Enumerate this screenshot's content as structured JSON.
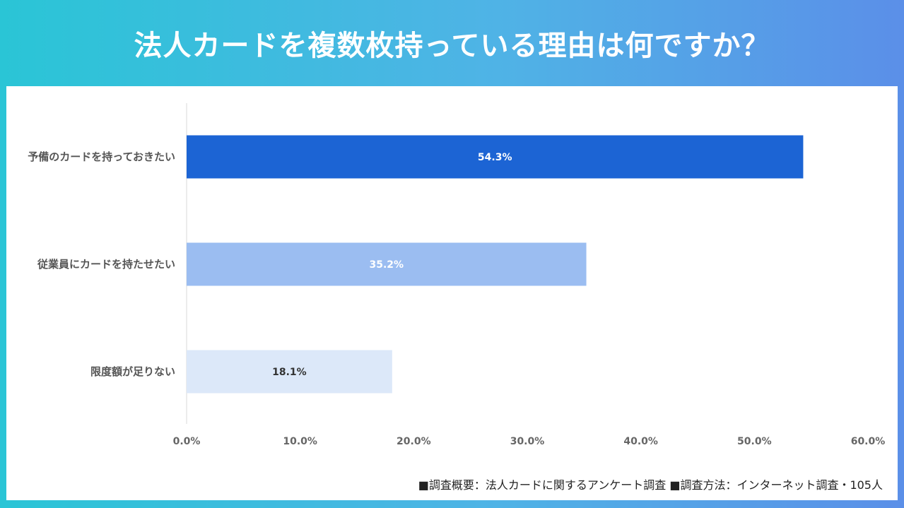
{
  "title": "法人カードを複数枚持っている理由は何ですか？",
  "footnote": "■調査概要：法人カードに関するアンケート調査 ■調査方法：インターネット調査・105人",
  "colors": {
    "bar_1": "#1c64d4",
    "bar_2": "#9bbdf1",
    "bar_3": "#dce8f9",
    "label_light": "#ffffff",
    "label_dark": "#333333"
  },
  "chart_data": {
    "type": "bar",
    "orientation": "horizontal",
    "categories": [
      "予備のカードを持っておきたい",
      "従業員にカードを持たせたい",
      "限度額が足りない"
    ],
    "values": [
      54.3,
      35.2,
      18.1
    ],
    "value_labels": [
      "54.3%",
      "35.2%",
      "18.1%"
    ],
    "xlim": [
      0,
      60
    ],
    "xticks": [
      0,
      10,
      20,
      30,
      40,
      50,
      60
    ],
    "xtick_labels": [
      "0.0%",
      "10.0%",
      "20.0%",
      "30.0%",
      "40.0%",
      "50.0%",
      "60.0%"
    ],
    "xlabel": "",
    "ylabel": "",
    "grid": false,
    "legend": false
  }
}
